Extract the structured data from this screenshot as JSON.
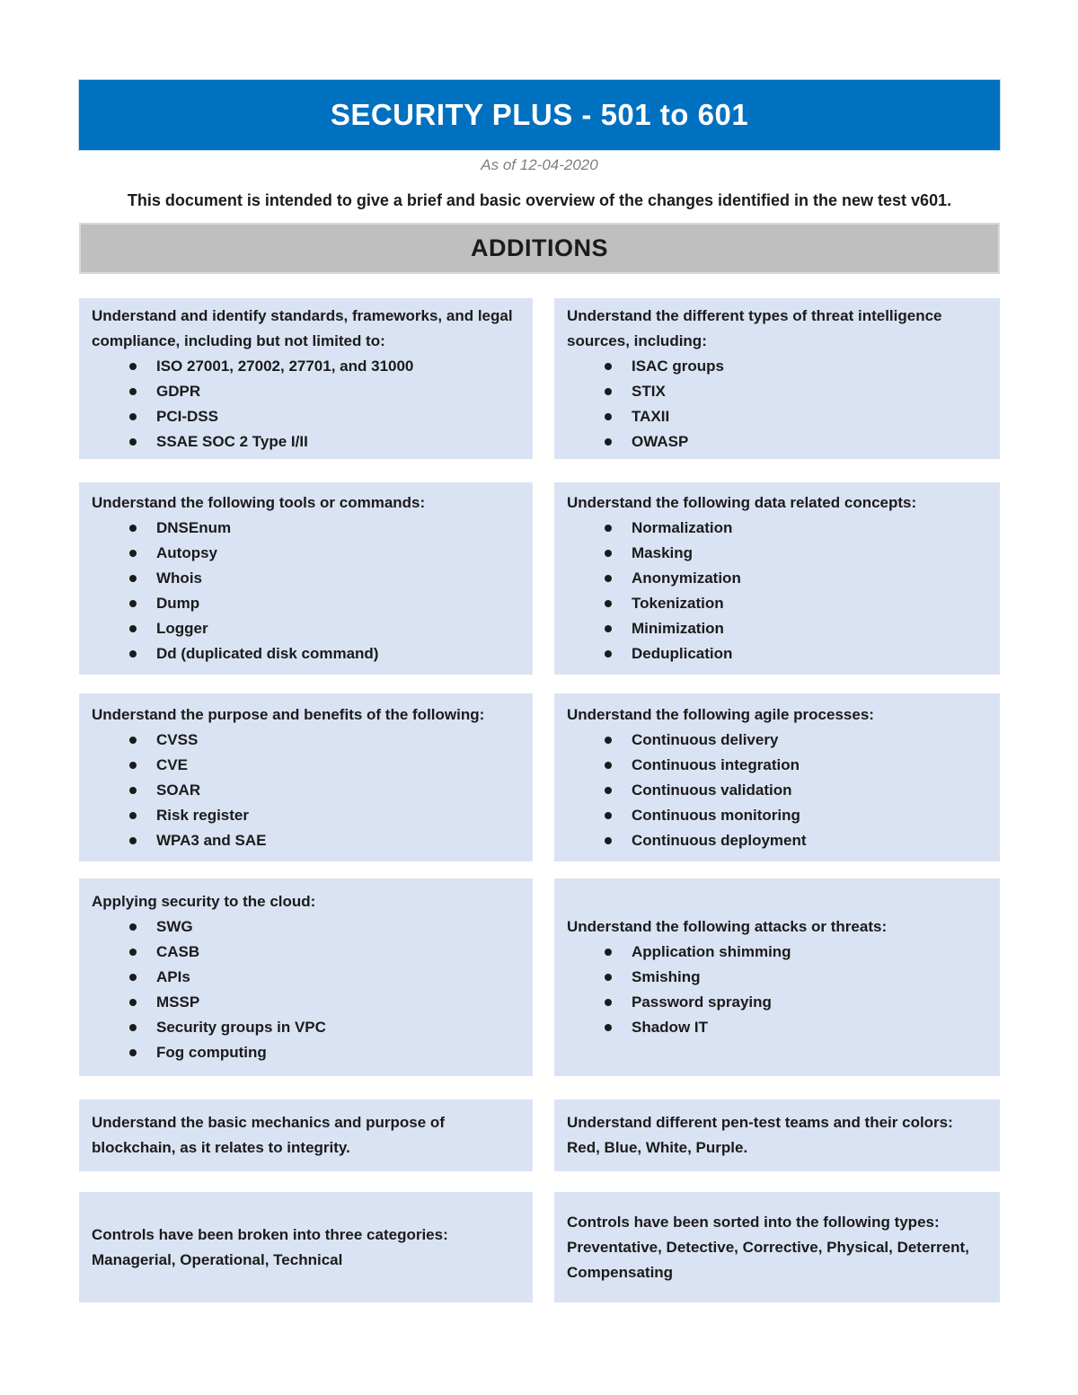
{
  "header": {
    "title": "SECURITY PLUS - 501 to 601",
    "as_of": "As of 12-04-2020",
    "intro": "This document is intended to give a brief and basic overview of the changes identified in the new test v601."
  },
  "section": {
    "label": "ADDITIONS"
  },
  "colors": {
    "header_bg": "#0070C0",
    "header_text": "#FFFFFF",
    "section_bar_bg": "#BFBFBF",
    "card_bg": "#DAE3F3",
    "muted_text": "#7F7F7F"
  },
  "rows": [
    {
      "cells": [
        {
          "title": "Understand and identify standards, frameworks, and legal compliance, including but not limited to:",
          "bullets": [
            "ISO 27001, 27002, 27701, and 31000",
            "GDPR",
            "PCI-DSS",
            "SSAE SOC 2 Type I/II"
          ]
        },
        {
          "title": "Understand the different types of threat intelligence sources, including:",
          "bullets": [
            "ISAC groups",
            "STIX",
            "TAXII",
            "OWASP"
          ]
        }
      ]
    },
    {
      "cells": [
        {
          "title": "Understand the following tools or commands:",
          "bullets": [
            "DNSEnum",
            "Autopsy",
            "Whois",
            "Dump",
            "Logger",
            "Dd (duplicated disk command)"
          ]
        },
        {
          "title": "Understand the following data related concepts:",
          "bullets": [
            "Normalization",
            "Masking",
            "Anonymization",
            "Tokenization",
            "Minimization",
            "Deduplication"
          ]
        }
      ]
    },
    {
      "cells": [
        {
          "title": "Understand the purpose and benefits of the following:",
          "bullets": [
            "CVSS",
            "CVE",
            "SOAR",
            "Risk register",
            "WPA3 and SAE"
          ]
        },
        {
          "title": "Understand the following agile processes:",
          "bullets": [
            "Continuous delivery",
            "Continuous integration",
            "Continuous validation",
            "Continuous monitoring",
            "Continuous deployment"
          ]
        }
      ]
    },
    {
      "cells": [
        {
          "title": "Applying security to the cloud:",
          "bullets": [
            "SWG",
            "CASB",
            "APIs",
            "MSSP",
            "Security groups in VPC",
            "Fog computing"
          ]
        },
        {
          "title": "Understand the following attacks or threats:",
          "bullets": [
            "Application shimming",
            "Smishing",
            "Password spraying",
            "Shadow IT"
          ]
        }
      ]
    },
    {
      "cells": [
        {
          "title": "Understand the basic mechanics and purpose of blockchain, as it relates to integrity.",
          "bullets": []
        },
        {
          "title": "Understand different pen-test teams and their colors: Red, Blue, White, Purple.",
          "bullets": []
        }
      ]
    },
    {
      "cells": [
        {
          "title": "Controls have been broken into three categories: Managerial, Operational, Technical",
          "bullets": []
        },
        {
          "title": "Controls have been sorted into the following types: Preventative, Detective, Corrective, Physical, Deterrent, Compensating",
          "bullets": []
        }
      ]
    }
  ]
}
